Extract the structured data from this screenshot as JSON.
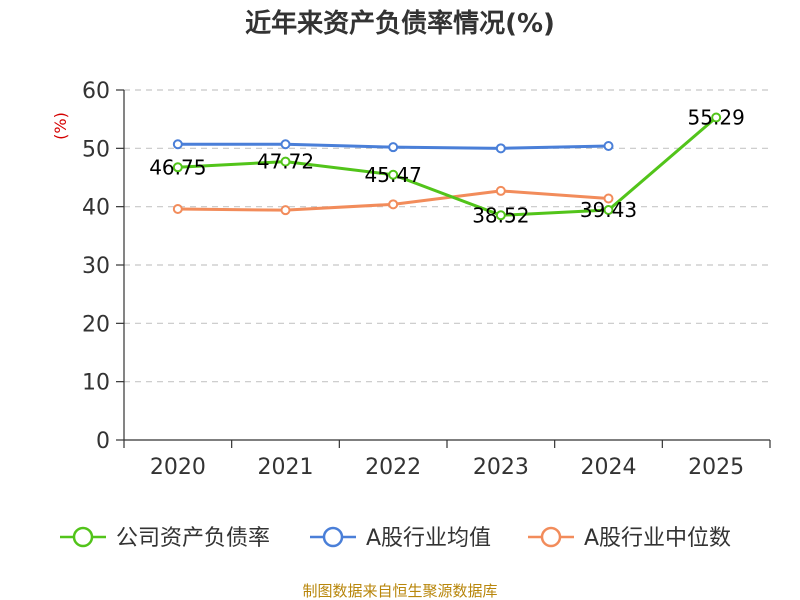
{
  "chart_data": {
    "type": "line",
    "title": "近年来资产负债率情况(%)",
    "unit_label": "(%)",
    "categories": [
      "2020",
      "2021",
      "2022",
      "2023",
      "2024",
      "2025"
    ],
    "ylim": [
      0,
      60
    ],
    "yticks": [
      0,
      10,
      20,
      30,
      40,
      50,
      60
    ],
    "grid": true,
    "legend_position": "bottom",
    "series": [
      {
        "name": "公司资产负债率",
        "color": "#52c41a",
        "values": [
          46.75,
          47.72,
          45.47,
          38.52,
          39.43,
          55.29
        ],
        "labels": [
          "46.75",
          "47.72",
          "45.47",
          "38.52",
          "39.43",
          "55.29"
        ],
        "show_labels": true
      },
      {
        "name": "A股行业均值",
        "color": "#4a7fd8",
        "values": [
          50.7,
          50.7,
          50.2,
          50.0,
          50.4,
          null
        ],
        "show_labels": false
      },
      {
        "name": "A股行业中位数",
        "color": "#f28c5b",
        "values": [
          39.6,
          39.4,
          40.4,
          42.7,
          41.4,
          null
        ],
        "show_labels": false
      }
    ],
    "source": "制图数据来自恒生聚源数据库"
  }
}
